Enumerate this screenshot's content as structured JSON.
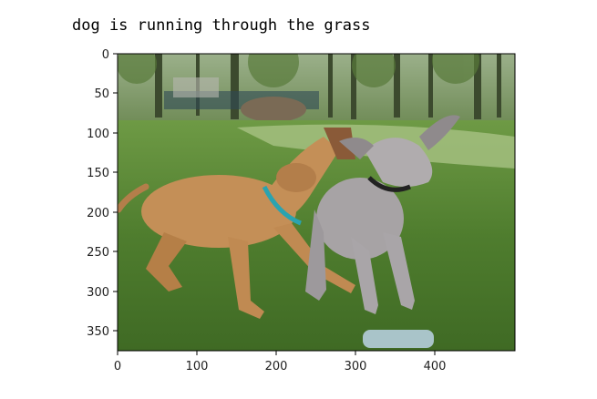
{
  "caption": "dog is running through the grass",
  "plot": {
    "x_ticks": [
      "0",
      "100",
      "200",
      "300",
      "400"
    ],
    "y_ticks": [
      "0",
      "50",
      "100",
      "150",
      "200",
      "250",
      "300",
      "350"
    ],
    "x_range": [
      0,
      500
    ],
    "y_range": [
      0,
      375
    ],
    "image_description_icon": "photo-two-dogs-playing-on-grass"
  }
}
